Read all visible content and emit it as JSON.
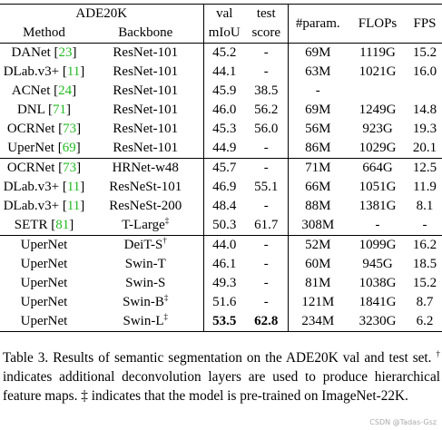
{
  "table": {
    "header": {
      "dataset": "ADE20K",
      "val": "val",
      "test": "test",
      "params": "#param.",
      "flops": "FLOPs",
      "fps": "FPS",
      "method": "Method",
      "backbone": "Backbone",
      "miou": "mIoU",
      "score": "score"
    },
    "groups": [
      [
        {
          "method": [
            "DANet [",
            "23",
            "]"
          ],
          "backbone": "ResNet-101",
          "sup": null,
          "cells": [
            "45.2",
            "-",
            "69M",
            "1119G",
            "15.2"
          ]
        },
        {
          "method": [
            "DLab.v3+ [",
            "11",
            "]"
          ],
          "backbone": "ResNet-101",
          "sup": null,
          "cells": [
            "44.1",
            "-",
            "63M",
            "1021G",
            "16.0"
          ]
        },
        {
          "method": [
            "ACNet [",
            "24",
            "]"
          ],
          "backbone": "ResNet-101",
          "sup": null,
          "cells": [
            "45.9",
            "38.5",
            "-",
            null,
            null
          ]
        },
        {
          "method": [
            "DNL [",
            "71",
            "]"
          ],
          "backbone": "ResNet-101",
          "sup": null,
          "cells": [
            "46.0",
            "56.2",
            "69M",
            "1249G",
            "14.8"
          ]
        },
        {
          "method": [
            "OCRNet [",
            "73",
            "]"
          ],
          "backbone": "ResNet-101",
          "sup": null,
          "cells": [
            "45.3",
            "56.0",
            "56M",
            "923G",
            "19.3"
          ]
        },
        {
          "method": [
            "UperNet [",
            "69",
            "]"
          ],
          "backbone": "ResNet-101",
          "sup": null,
          "cells": [
            "44.9",
            "-",
            "86M",
            "1029G",
            "20.1"
          ]
        }
      ],
      [
        {
          "method": [
            "OCRNet [",
            "73",
            "]"
          ],
          "backbone": "HRNet-w48",
          "sup": null,
          "cells": [
            "45.7",
            "-",
            "71M",
            "664G",
            "12.5"
          ]
        },
        {
          "method": [
            "DLab.v3+ [",
            "11",
            "]"
          ],
          "backbone": "ResNeSt-101",
          "sup": null,
          "cells": [
            "46.9",
            "55.1",
            "66M",
            "1051G",
            "11.9"
          ]
        },
        {
          "method": [
            "DLab.v3+ [",
            "11",
            "]"
          ],
          "backbone": "ResNeSt-200",
          "sup": null,
          "cells": [
            "48.4",
            "-",
            "88M",
            "1381G",
            "8.1"
          ]
        },
        {
          "method": [
            "SETR [",
            "81",
            "]"
          ],
          "backbone": "T-Large",
          "sup": "‡",
          "cells": [
            "50.3",
            "61.7",
            "308M",
            "-",
            "-"
          ]
        }
      ],
      [
        {
          "method": [
            "UperNet"
          ],
          "backbone": "DeiT-S",
          "sup": "†",
          "cells": [
            "44.0",
            "-",
            "52M",
            "1099G",
            "16.2"
          ]
        },
        {
          "method": [
            "UperNet"
          ],
          "backbone": "Swin-T",
          "sup": null,
          "cells": [
            "46.1",
            "-",
            "60M",
            "945G",
            "18.5"
          ]
        },
        {
          "method": [
            "UperNet"
          ],
          "backbone": "Swin-S",
          "sup": null,
          "cells": [
            "49.3",
            "-",
            "81M",
            "1038G",
            "15.2"
          ]
        },
        {
          "method": [
            "UperNet"
          ],
          "backbone": "Swin-B",
          "sup": "‡",
          "cells": [
            "51.6",
            "-",
            "121M",
            "1841G",
            "8.7"
          ]
        },
        {
          "method": [
            "UperNet"
          ],
          "backbone": "Swin-L",
          "sup": "‡",
          "cells": [
            "53.5",
            "62.8",
            "234M",
            "3230G",
            "6.2"
          ]
        }
      ]
    ]
  },
  "caption": [
    "Table 3. Results of semantic segmentation on the ADE20K val and test set. ",
    "†",
    " indicates additional deconvolution layers are used to produce hierarchical feature maps. ",
    "‡",
    " indicates that the model is pre-trained on ImageNet-22K."
  ],
  "watermark": "CSDN @Tadas-Gsz"
}
